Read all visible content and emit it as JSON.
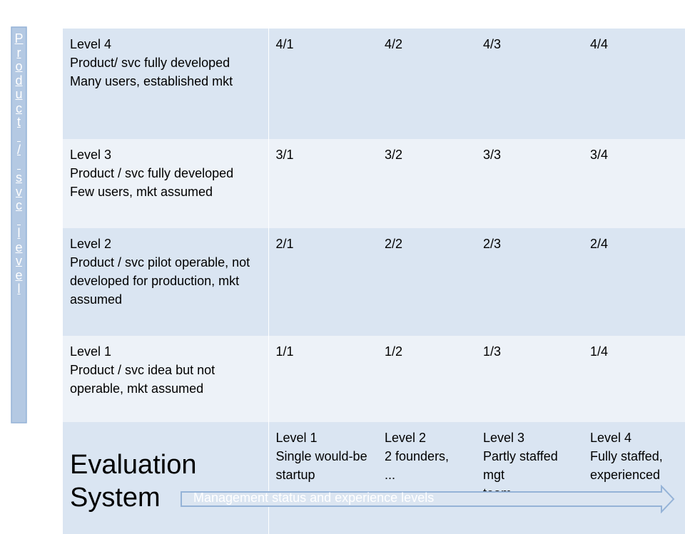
{
  "rows": [
    {
      "header": [
        "Level 4",
        "Product/ svc fully developed",
        "Many users, established mkt"
      ],
      "cells": [
        "4/1",
        "4/2",
        "4/3",
        "4/4"
      ]
    },
    {
      "header": [
        "Level 3",
        "Product / svc fully developed",
        "Few users, mkt assumed"
      ],
      "cells": [
        "3/1",
        "3/2",
        "3/3",
        "3/4"
      ]
    },
    {
      "header": [
        "Level 2",
        "Product / svc pilot operable, not developed for production, mkt assumed"
      ],
      "cells": [
        "2/1",
        "2/2",
        "2/3",
        "2/4"
      ]
    },
    {
      "header": [
        "Level 1",
        "Product / svc idea but not operable, mkt assumed"
      ],
      "cells": [
        "1/1",
        "1/2",
        "1/3",
        "1/4"
      ]
    }
  ],
  "bottom_row": {
    "title": "Evaluation System",
    "columns": [
      [
        "Level 1",
        "Single would-be",
        "startup"
      ],
      [
        "Level 2",
        "2 founders,",
        "..."
      ],
      [
        "Level 3",
        "Partly staffed mgt",
        "team,"
      ],
      [
        "Level 4",
        "Fully staffed,",
        "experienced"
      ]
    ]
  },
  "vertical_axis_label": "Product / svc level",
  "horizontal_axis_label": "Management status and experience levels",
  "colors": {
    "cell_dark": "#dae5f2",
    "cell_light": "#edf2f8",
    "arrow_fill": "#dbe5f1",
    "arrow_stroke": "#95b3d7",
    "vertical_bar": "#b4c9e3"
  }
}
